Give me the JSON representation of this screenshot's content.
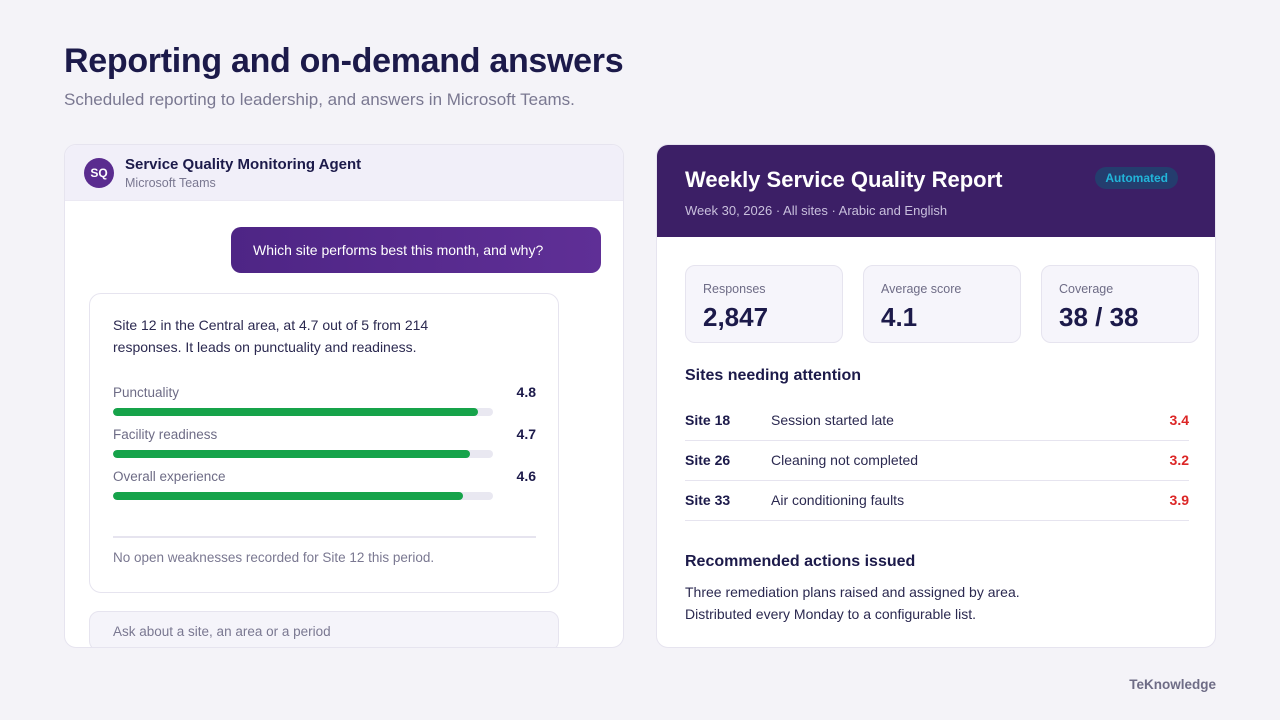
{
  "page": {
    "title": "Reporting and on-demand answers",
    "subtitle": "Scheduled reporting to leadership, and answers in Microsoft Teams."
  },
  "chat": {
    "avatar_initials": "SQ",
    "agent_name": "Service Quality Monitoring Agent",
    "agent_app": "Microsoft Teams",
    "user_message": "Which site performs best this month, and why?",
    "answer_text": "Site 12 in the Central area, at 4.7 out of 5 from 214 responses. It leads on punctuality and readiness.",
    "metrics": [
      {
        "label": "Punctuality",
        "value": "4.8",
        "score": 4.8
      },
      {
        "label": "Facility readiness",
        "value": "4.7",
        "score": 4.7
      },
      {
        "label": "Overall experience",
        "value": "4.6",
        "score": 4.6
      }
    ],
    "note": "No open weaknesses recorded for Site 12 this period.",
    "input_placeholder": "Ask about a site, an area or a period"
  },
  "report": {
    "title": "Weekly Service Quality Report",
    "meta": "Week 30, 2026 · All sites · Arabic and English",
    "badge": "Automated",
    "kpis": [
      {
        "label": "Responses",
        "value": "2,847"
      },
      {
        "label": "Average score",
        "value": "4.1"
      },
      {
        "label": "Coverage",
        "value": "38 / 38"
      }
    ],
    "attention_title": "Sites needing attention",
    "sites": [
      {
        "site": "Site 18",
        "issue": "Session started late",
        "score": "3.4"
      },
      {
        "site": "Site 26",
        "issue": "Cleaning not completed",
        "score": "3.2"
      },
      {
        "site": "Site 33",
        "issue": "Air conditioning faults",
        "score": "3.9"
      }
    ],
    "actions_title": "Recommended actions issued",
    "actions_lines": [
      "Three remediation plans raised and assigned by area.",
      "Distributed every Monday to a configurable list."
    ]
  },
  "brand": "TeKnowledge",
  "colors": {
    "primary_purple": "#3c1f66",
    "bubble_purple": "#5a2c8f",
    "bar_green": "#16a34a",
    "alert_red": "#dc2626",
    "badge_cyan": "#22b5d9"
  }
}
